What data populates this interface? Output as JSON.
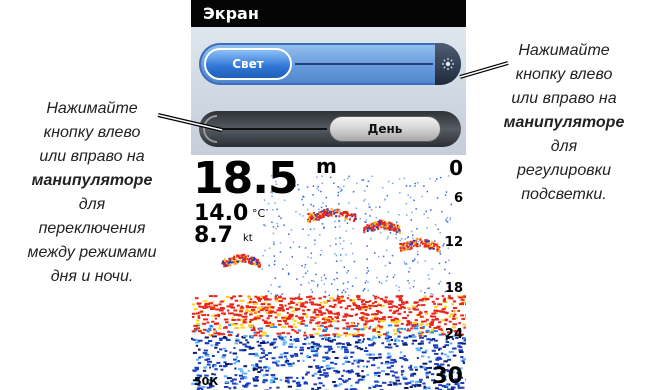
{
  "screen": {
    "title": "Экран",
    "backlight_slider": {
      "label": "Свет"
    },
    "mode_slider": {
      "label": "День"
    }
  },
  "sonar": {
    "depth": "18.5",
    "depth_unit": "m",
    "temperature": "14.0",
    "temperature_unit": "°C",
    "speed": "8.7",
    "speed_unit": "kt",
    "scale": [
      "0",
      "6",
      "12",
      "18",
      "24",
      "30"
    ],
    "frequency": "50К"
  },
  "callouts": {
    "left": {
      "line1": "Нажимайте",
      "line2": "кнопку влево",
      "line3": "или вправо на",
      "line4": "манипуляторе",
      "line5": "для",
      "line6": "переключения",
      "line7": "между режимами",
      "line8": "дня и ночи."
    },
    "right": {
      "line1": "Нажимайте",
      "line2": "кнопку влево",
      "line3": "или вправо на",
      "line4": "манипуляторе",
      "line5": "для",
      "line6": "регулировки",
      "line7": "подсветки."
    }
  },
  "colors": {
    "accent_blue": "#2f75d4",
    "title_bg": "#050505",
    "sonar_red": "#e8261c",
    "sonar_blue": "#1a3fbf"
  }
}
